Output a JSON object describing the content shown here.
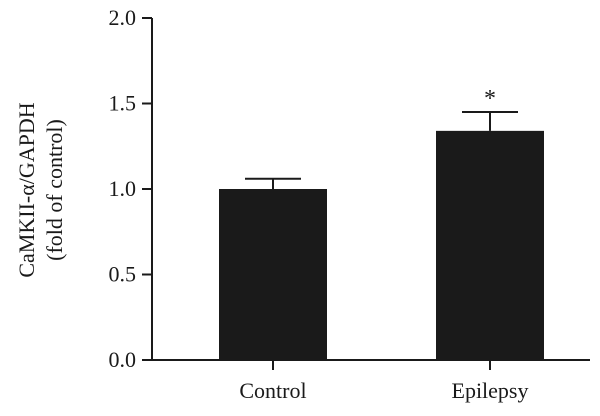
{
  "chart_data": {
    "type": "bar",
    "categories": [
      "Control",
      "Epilepsy"
    ],
    "values": [
      1.0,
      1.34
    ],
    "errors": [
      0.06,
      0.11
    ],
    "annotations": [
      "",
      "*"
    ],
    "ylabel_lines": [
      "CaMKII-α/GAPDH",
      "(fold of control)"
    ],
    "ylim": [
      0,
      2.0
    ],
    "yticks": [
      "0.0",
      "0.5",
      "1.0",
      "1.5",
      "2.0"
    ],
    "grid": false,
    "bar_color": "#1a1a1a"
  }
}
